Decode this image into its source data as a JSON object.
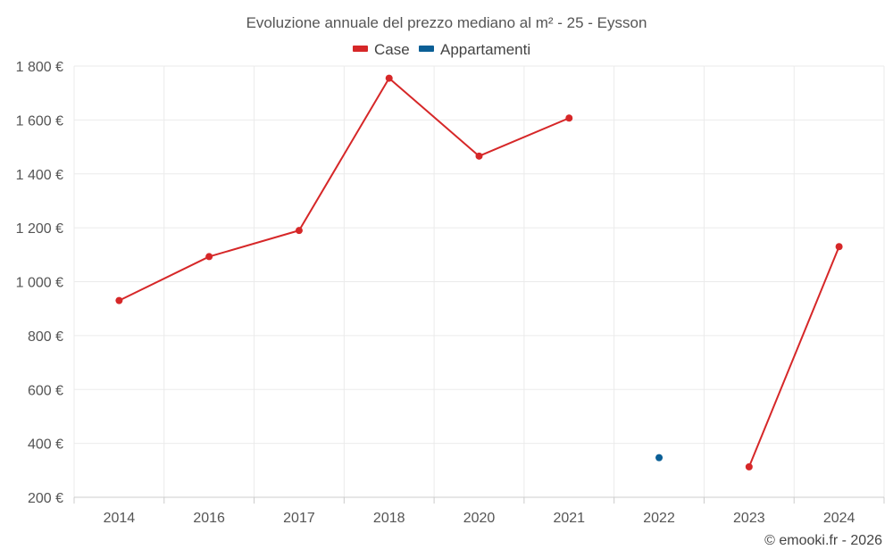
{
  "chart_data": {
    "type": "line",
    "title": "Evoluzione annuale del prezzo mediano al m² - 25 - Eysson",
    "categories": [
      "2014",
      "2016",
      "2017",
      "2018",
      "2020",
      "2021",
      "2022",
      "2023",
      "2024"
    ],
    "y_ticks": [
      "200 €",
      "400 €",
      "600 €",
      "800 €",
      "1 000 €",
      "1 200 €",
      "1 400 €",
      "1 600 €",
      "1 800 €"
    ],
    "ylim": [
      200,
      1800
    ],
    "grid": true,
    "legend_position": "top-center",
    "series": [
      {
        "name": "Case",
        "color": "#d62728",
        "values": [
          930,
          1093,
          1190,
          1755,
          1466,
          1607,
          null,
          313,
          1130
        ]
      },
      {
        "name": "Appartamenti",
        "color": "#0b5f96",
        "values": [
          null,
          null,
          null,
          null,
          null,
          null,
          347,
          null,
          null
        ]
      }
    ]
  },
  "credit": "© emooki.fr - 2026"
}
